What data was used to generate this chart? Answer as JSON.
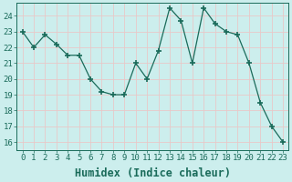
{
  "x": [
    0,
    1,
    2,
    3,
    4,
    5,
    6,
    7,
    8,
    9,
    10,
    11,
    12,
    13,
    14,
    15,
    16,
    17,
    18,
    19,
    20,
    21,
    22,
    23
  ],
  "y": [
    23,
    22,
    22.8,
    22.2,
    21.5,
    21.5,
    20,
    19.2,
    19,
    19,
    21,
    20,
    21.8,
    24.5,
    23.7,
    21,
    24.5,
    23.5,
    23,
    22.8,
    21,
    18.5,
    17,
    16
  ],
  "xlabel": "Humidex (Indice chaleur)",
  "xlim": [
    -0.5,
    23.5
  ],
  "ylim": [
    15.5,
    24.8
  ],
  "yticks": [
    16,
    17,
    18,
    19,
    20,
    21,
    22,
    23,
    24
  ],
  "xticks": [
    0,
    1,
    2,
    3,
    4,
    5,
    6,
    7,
    8,
    9,
    10,
    11,
    12,
    13,
    14,
    15,
    16,
    17,
    18,
    19,
    20,
    21,
    22,
    23
  ],
  "line_color": "#1a6b5a",
  "marker": "+",
  "bg_color": "#cceeed",
  "grid_color": "#e8c8c8",
  "tick_color": "#1a6b5a",
  "tick_label_fontsize": 6.5,
  "xlabel_fontsize": 8.5,
  "spine_color": "#1a6b5a"
}
